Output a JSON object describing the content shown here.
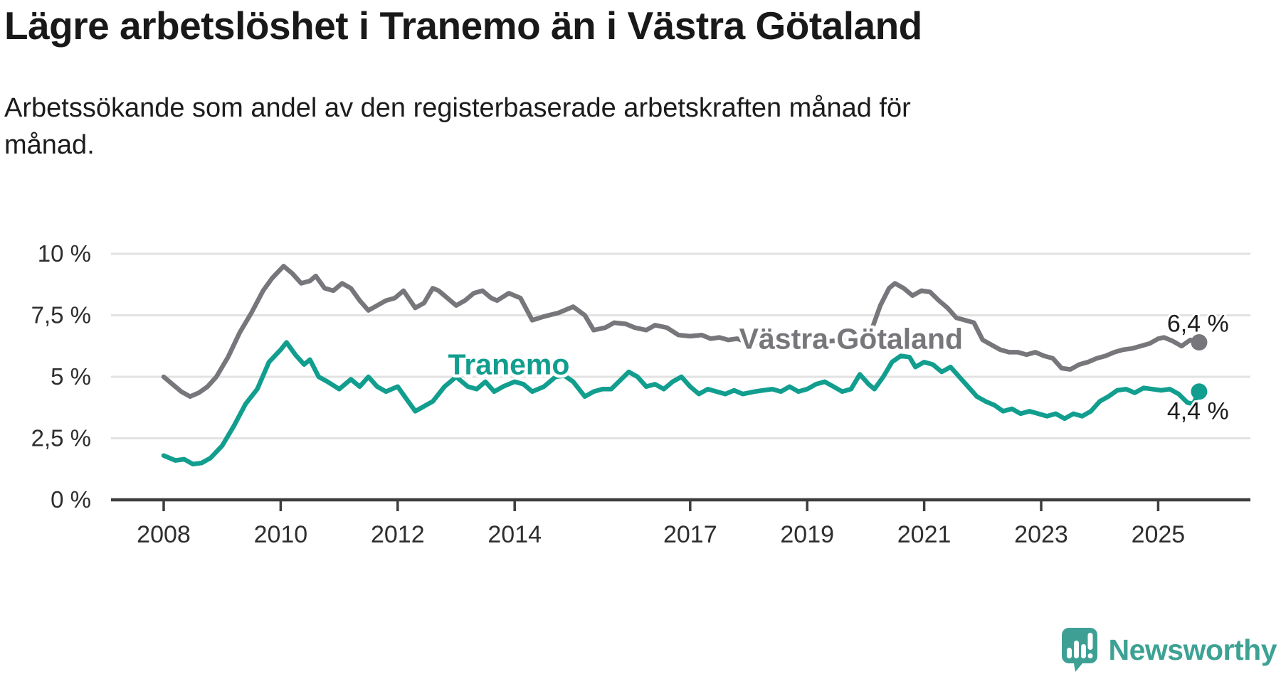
{
  "header": {
    "title": "Lägre arbetslöshet i Tranemo än i Västra Götaland",
    "subtitle_lines": [
      "Arbetssökande som andel av den registerbaserade arbetskraften månad för",
      "månad."
    ]
  },
  "logo": {
    "text": "Newsworthy",
    "color": "#3ea095"
  },
  "colors": {
    "tranemo": "#119e8e",
    "vastra_gotaland": "#77777b",
    "axis": "#3d3d3d",
    "grid": "#e2e2e2",
    "text": "#2e2e2e",
    "annotation_text": "#1d1d1d"
  },
  "chart_data": {
    "type": "line",
    "unit": "%",
    "x_axis": {
      "ticks": [
        "2008",
        "2010",
        "2012",
        "2014",
        "2017",
        "2019",
        "2021",
        "2023",
        "2025"
      ],
      "tick_years": [
        2008,
        2010,
        2012,
        2014,
        2017,
        2019,
        2021,
        2023,
        2025
      ]
    },
    "y_axis": {
      "ticks": [
        {
          "v": 0,
          "label": "0 %"
        },
        {
          "v": 2.5,
          "label": "2,5 %"
        },
        {
          "v": 5,
          "label": "5 %"
        },
        {
          "v": 7.5,
          "label": "7,5 %"
        },
        {
          "v": 10,
          "label": "10 %"
        }
      ],
      "min": 0,
      "max": 10
    },
    "series": [
      {
        "name": "Västra Götaland",
        "slug": "vastra-gotaland",
        "color": "#77777b",
        "end_value_label": "6,4 %",
        "points": [
          [
            2008.0,
            5.0
          ],
          [
            2008.15,
            4.7
          ],
          [
            2008.3,
            4.4
          ],
          [
            2008.45,
            4.2
          ],
          [
            2008.6,
            4.35
          ],
          [
            2008.75,
            4.6
          ],
          [
            2008.9,
            5.0
          ],
          [
            2009.1,
            5.8
          ],
          [
            2009.3,
            6.8
          ],
          [
            2009.5,
            7.6
          ],
          [
            2009.7,
            8.5
          ],
          [
            2009.85,
            9.0
          ],
          [
            2010.05,
            9.5
          ],
          [
            2010.2,
            9.2
          ],
          [
            2010.35,
            8.8
          ],
          [
            2010.5,
            8.9
          ],
          [
            2010.6,
            9.1
          ],
          [
            2010.75,
            8.6
          ],
          [
            2010.9,
            8.5
          ],
          [
            2011.05,
            8.8
          ],
          [
            2011.2,
            8.6
          ],
          [
            2011.35,
            8.1
          ],
          [
            2011.5,
            7.7
          ],
          [
            2011.65,
            7.9
          ],
          [
            2011.8,
            8.1
          ],
          [
            2011.95,
            8.2
          ],
          [
            2012.1,
            8.5
          ],
          [
            2012.3,
            7.8
          ],
          [
            2012.45,
            8.0
          ],
          [
            2012.6,
            8.6
          ],
          [
            2012.7,
            8.5
          ],
          [
            2012.85,
            8.2
          ],
          [
            2013.0,
            7.9
          ],
          [
            2013.15,
            8.1
          ],
          [
            2013.3,
            8.4
          ],
          [
            2013.45,
            8.5
          ],
          [
            2013.6,
            8.2
          ],
          [
            2013.7,
            8.1
          ],
          [
            2013.9,
            8.4
          ],
          [
            2014.1,
            8.2
          ],
          [
            2014.3,
            7.3
          ],
          [
            2014.5,
            7.45
          ],
          [
            2014.75,
            7.6
          ],
          [
            2015.0,
            7.85
          ],
          [
            2015.2,
            7.5
          ],
          [
            2015.35,
            6.9
          ],
          [
            2015.55,
            7.0
          ],
          [
            2015.7,
            7.2
          ],
          [
            2015.9,
            7.15
          ],
          [
            2016.05,
            7.0
          ],
          [
            2016.25,
            6.9
          ],
          [
            2016.4,
            7.1
          ],
          [
            2016.6,
            7.0
          ],
          [
            2016.8,
            6.7
          ],
          [
            2017.0,
            6.65
          ],
          [
            2017.2,
            6.7
          ],
          [
            2017.35,
            6.55
          ],
          [
            2017.5,
            6.6
          ],
          [
            2017.65,
            6.5
          ],
          [
            2017.8,
            6.55
          ],
          [
            2018.0,
            6.4
          ],
          [
            2018.2,
            6.35
          ],
          [
            2018.4,
            6.4
          ],
          [
            2018.6,
            6.45
          ],
          [
            2018.8,
            6.3
          ],
          [
            2019.0,
            6.35
          ],
          [
            2019.2,
            6.4
          ],
          [
            2019.4,
            6.45
          ],
          [
            2019.6,
            6.5
          ],
          [
            2019.8,
            6.45
          ],
          [
            2019.95,
            6.6
          ],
          [
            2020.1,
            6.9
          ],
          [
            2020.25,
            7.9
          ],
          [
            2020.4,
            8.6
          ],
          [
            2020.5,
            8.8
          ],
          [
            2020.65,
            8.6
          ],
          [
            2020.8,
            8.3
          ],
          [
            2020.95,
            8.5
          ],
          [
            2021.1,
            8.45
          ],
          [
            2021.25,
            8.1
          ],
          [
            2021.4,
            7.8
          ],
          [
            2021.55,
            7.4
          ],
          [
            2021.7,
            7.3
          ],
          [
            2021.85,
            7.2
          ],
          [
            2022.0,
            6.5
          ],
          [
            2022.15,
            6.3
          ],
          [
            2022.3,
            6.1
          ],
          [
            2022.45,
            6.0
          ],
          [
            2022.6,
            6.0
          ],
          [
            2022.75,
            5.9
          ],
          [
            2022.9,
            6.0
          ],
          [
            2023.05,
            5.85
          ],
          [
            2023.2,
            5.75
          ],
          [
            2023.35,
            5.35
          ],
          [
            2023.5,
            5.3
          ],
          [
            2023.65,
            5.5
          ],
          [
            2023.8,
            5.6
          ],
          [
            2023.95,
            5.75
          ],
          [
            2024.1,
            5.85
          ],
          [
            2024.25,
            6.0
          ],
          [
            2024.4,
            6.1
          ],
          [
            2024.55,
            6.15
          ],
          [
            2024.7,
            6.25
          ],
          [
            2024.85,
            6.35
          ],
          [
            2025.0,
            6.55
          ],
          [
            2025.1,
            6.6
          ],
          [
            2025.25,
            6.45
          ],
          [
            2025.4,
            6.25
          ],
          [
            2025.55,
            6.5
          ],
          [
            2025.7,
            6.4
          ]
        ]
      },
      {
        "name": "Tranemo",
        "slug": "tranemo",
        "color": "#119e8e",
        "end_value_label": "4,4 %",
        "points": [
          [
            2008.0,
            1.8
          ],
          [
            2008.2,
            1.6
          ],
          [
            2008.35,
            1.65
          ],
          [
            2008.5,
            1.45
          ],
          [
            2008.65,
            1.5
          ],
          [
            2008.8,
            1.7
          ],
          [
            2009.0,
            2.2
          ],
          [
            2009.2,
            3.0
          ],
          [
            2009.4,
            3.9
          ],
          [
            2009.6,
            4.5
          ],
          [
            2009.8,
            5.6
          ],
          [
            2010.0,
            6.1
          ],
          [
            2010.1,
            6.4
          ],
          [
            2010.25,
            5.9
          ],
          [
            2010.4,
            5.5
          ],
          [
            2010.5,
            5.7
          ],
          [
            2010.65,
            5.0
          ],
          [
            2010.8,
            4.8
          ],
          [
            2011.0,
            4.5
          ],
          [
            2011.2,
            4.9
          ],
          [
            2011.35,
            4.6
          ],
          [
            2011.5,
            5.0
          ],
          [
            2011.65,
            4.6
          ],
          [
            2011.8,
            4.4
          ],
          [
            2012.0,
            4.6
          ],
          [
            2012.15,
            4.1
          ],
          [
            2012.3,
            3.6
          ],
          [
            2012.45,
            3.8
          ],
          [
            2012.6,
            4.0
          ],
          [
            2012.8,
            4.6
          ],
          [
            2013.0,
            5.0
          ],
          [
            2013.2,
            4.6
          ],
          [
            2013.35,
            4.5
          ],
          [
            2013.5,
            4.8
          ],
          [
            2013.65,
            4.4
          ],
          [
            2013.8,
            4.6
          ],
          [
            2014.0,
            4.8
          ],
          [
            2014.15,
            4.7
          ],
          [
            2014.3,
            4.4
          ],
          [
            2014.5,
            4.6
          ],
          [
            2014.7,
            5.0
          ],
          [
            2014.85,
            5.05
          ],
          [
            2015.0,
            4.8
          ],
          [
            2015.2,
            4.2
          ],
          [
            2015.35,
            4.4
          ],
          [
            2015.5,
            4.5
          ],
          [
            2015.65,
            4.5
          ],
          [
            2015.8,
            4.85
          ],
          [
            2015.95,
            5.2
          ],
          [
            2016.1,
            5.0
          ],
          [
            2016.25,
            4.6
          ],
          [
            2016.4,
            4.7
          ],
          [
            2016.55,
            4.5
          ],
          [
            2016.7,
            4.8
          ],
          [
            2016.85,
            5.0
          ],
          [
            2017.0,
            4.6
          ],
          [
            2017.15,
            4.3
          ],
          [
            2017.3,
            4.5
          ],
          [
            2017.45,
            4.4
          ],
          [
            2017.6,
            4.3
          ],
          [
            2017.75,
            4.45
          ],
          [
            2017.9,
            4.3
          ],
          [
            2018.1,
            4.4
          ],
          [
            2018.25,
            4.45
          ],
          [
            2018.4,
            4.5
          ],
          [
            2018.55,
            4.4
          ],
          [
            2018.7,
            4.6
          ],
          [
            2018.85,
            4.4
          ],
          [
            2019.0,
            4.5
          ],
          [
            2019.15,
            4.7
          ],
          [
            2019.3,
            4.8
          ],
          [
            2019.45,
            4.6
          ],
          [
            2019.6,
            4.4
          ],
          [
            2019.75,
            4.5
          ],
          [
            2019.9,
            5.1
          ],
          [
            2020.05,
            4.7
          ],
          [
            2020.15,
            4.5
          ],
          [
            2020.3,
            5.0
          ],
          [
            2020.45,
            5.6
          ],
          [
            2020.6,
            5.85
          ],
          [
            2020.75,
            5.8
          ],
          [
            2020.85,
            5.4
          ],
          [
            2021.0,
            5.6
          ],
          [
            2021.15,
            5.5
          ],
          [
            2021.3,
            5.2
          ],
          [
            2021.45,
            5.4
          ],
          [
            2021.6,
            5.0
          ],
          [
            2021.75,
            4.6
          ],
          [
            2021.9,
            4.2
          ],
          [
            2022.05,
            4.0
          ],
          [
            2022.2,
            3.85
          ],
          [
            2022.35,
            3.6
          ],
          [
            2022.5,
            3.7
          ],
          [
            2022.65,
            3.5
          ],
          [
            2022.8,
            3.6
          ],
          [
            2022.95,
            3.5
          ],
          [
            2023.1,
            3.4
          ],
          [
            2023.25,
            3.5
          ],
          [
            2023.4,
            3.3
          ],
          [
            2023.55,
            3.5
          ],
          [
            2023.7,
            3.4
          ],
          [
            2023.85,
            3.6
          ],
          [
            2024.0,
            4.0
          ],
          [
            2024.15,
            4.2
          ],
          [
            2024.3,
            4.45
          ],
          [
            2024.45,
            4.5
          ],
          [
            2024.6,
            4.35
          ],
          [
            2024.75,
            4.55
          ],
          [
            2024.9,
            4.5
          ],
          [
            2025.05,
            4.45
          ],
          [
            2025.2,
            4.5
          ],
          [
            2025.35,
            4.3
          ],
          [
            2025.5,
            3.95
          ],
          [
            2025.6,
            3.9
          ],
          [
            2025.7,
            4.4
          ]
        ]
      }
    ],
    "annotations": [
      {
        "text": "Tranemo",
        "x": 2013.9,
        "y": 5.5,
        "color": "#119e8e",
        "role": "series-label"
      },
      {
        "text": "Västra Götaland",
        "x": 2019.75,
        "y": 6.55,
        "color": "#77777b",
        "role": "series-label"
      },
      {
        "text": "6,4 %",
        "x": 2025.68,
        "y": 7.18,
        "color": "#1d1d1d",
        "role": "value-label"
      },
      {
        "text": "4,4 %",
        "x": 2025.68,
        "y": 3.62,
        "color": "#1d1d1d",
        "role": "value-label"
      }
    ],
    "legend_position": "inline-labels",
    "grid": "horizontal"
  }
}
